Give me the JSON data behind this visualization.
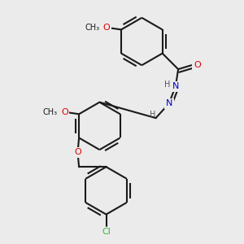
{
  "background_color": "#ebebeb",
  "bond_color": "#1a1a1a",
  "atom_colors": {
    "O": "#e00000",
    "N": "#0000cc",
    "Cl": "#33bb33",
    "H": "#555555",
    "C": "#1a1a1a"
  },
  "figsize": [
    3.0,
    3.0
  ],
  "dpi": 100
}
